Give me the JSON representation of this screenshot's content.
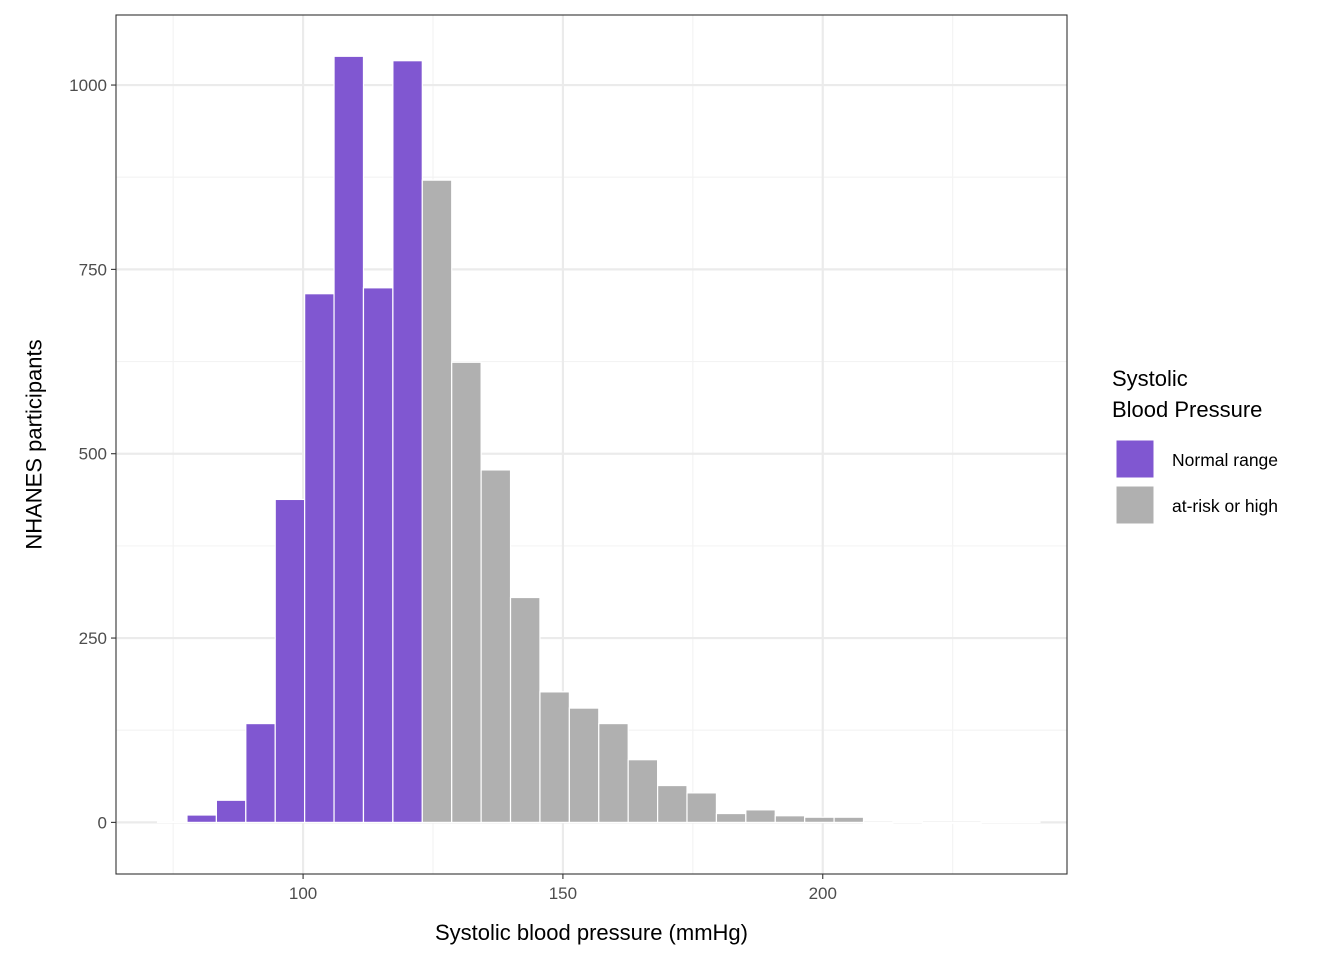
{
  "chart_data": {
    "type": "bar",
    "subtype": "histogram",
    "title": "",
    "xlabel": "Systolic blood pressure (mmHg)",
    "ylabel": "NHANES participants",
    "xlim": [
      64,
      247
    ],
    "ylim": [
      -70,
      1095
    ],
    "x_ticks": [
      100,
      150,
      200
    ],
    "x_tick_labels": [
      "100",
      "150",
      "200"
    ],
    "y_ticks": [
      0,
      250,
      500,
      750,
      1000
    ],
    "y_tick_labels": [
      "0",
      "250",
      "500",
      "750",
      "1000"
    ],
    "grid": true,
    "bin_width": 5.66,
    "bins": [
      {
        "x_start": 72.0,
        "x_end": 77.66,
        "count": 1,
        "group": "Normal range"
      },
      {
        "x_start": 77.66,
        "x_end": 83.32,
        "count": 10,
        "group": "Normal range"
      },
      {
        "x_start": 83.32,
        "x_end": 88.98,
        "count": 30,
        "group": "Normal range"
      },
      {
        "x_start": 88.98,
        "x_end": 94.64,
        "count": 134,
        "group": "Normal range"
      },
      {
        "x_start": 94.64,
        "x_end": 100.3,
        "count": 438,
        "group": "Normal range"
      },
      {
        "x_start": 100.3,
        "x_end": 105.96,
        "count": 717,
        "group": "Normal range"
      },
      {
        "x_start": 105.96,
        "x_end": 111.62,
        "count": 1039,
        "group": "Normal range"
      },
      {
        "x_start": 111.62,
        "x_end": 117.28,
        "count": 725,
        "group": "Normal range"
      },
      {
        "x_start": 117.28,
        "x_end": 122.94,
        "count": 1033,
        "group": "Normal range"
      },
      {
        "x_start": 122.94,
        "x_end": 128.6,
        "count": 871,
        "group": "at-risk or high"
      },
      {
        "x_start": 128.6,
        "x_end": 134.26,
        "count": 624,
        "group": "at-risk or high"
      },
      {
        "x_start": 134.26,
        "x_end": 139.92,
        "count": 478,
        "group": "at-risk or high"
      },
      {
        "x_start": 139.92,
        "x_end": 145.58,
        "count": 305,
        "group": "at-risk or high"
      },
      {
        "x_start": 145.58,
        "x_end": 151.24,
        "count": 177,
        "group": "at-risk or high"
      },
      {
        "x_start": 151.24,
        "x_end": 156.9,
        "count": 155,
        "group": "at-risk or high"
      },
      {
        "x_start": 156.9,
        "x_end": 162.56,
        "count": 134,
        "group": "at-risk or high"
      },
      {
        "x_start": 162.56,
        "x_end": 168.22,
        "count": 85,
        "group": "at-risk or high"
      },
      {
        "x_start": 168.22,
        "x_end": 173.88,
        "count": 50,
        "group": "at-risk or high"
      },
      {
        "x_start": 173.88,
        "x_end": 179.54,
        "count": 40,
        "group": "at-risk or high"
      },
      {
        "x_start": 179.54,
        "x_end": 185.2,
        "count": 12,
        "group": "at-risk or high"
      },
      {
        "x_start": 185.2,
        "x_end": 190.86,
        "count": 17,
        "group": "at-risk or high"
      },
      {
        "x_start": 190.86,
        "x_end": 196.52,
        "count": 9,
        "group": "at-risk or high"
      },
      {
        "x_start": 196.52,
        "x_end": 202.18,
        "count": 7,
        "group": "at-risk or high"
      },
      {
        "x_start": 202.18,
        "x_end": 207.84,
        "count": 7,
        "group": "at-risk or high"
      },
      {
        "x_start": 207.84,
        "x_end": 213.5,
        "count": 0,
        "group": "at-risk or high"
      },
      {
        "x_start": 213.5,
        "x_end": 219.16,
        "count": 1,
        "group": "at-risk or high"
      },
      {
        "x_start": 219.16,
        "x_end": 224.82,
        "count": 0,
        "group": "at-risk or high"
      },
      {
        "x_start": 224.82,
        "x_end": 230.48,
        "count": 0,
        "group": "at-risk or high"
      },
      {
        "x_start": 230.48,
        "x_end": 236.14,
        "count": 1,
        "group": "at-risk or high"
      },
      {
        "x_start": 236.14,
        "x_end": 241.8,
        "count": 1,
        "group": "at-risk or high"
      }
    ],
    "legend": {
      "title_lines": [
        "Systolic",
        "Blood Pressure"
      ],
      "position": "right",
      "entries": [
        {
          "label": "Normal range",
          "color": "#8057d1"
        },
        {
          "label": "at-risk or high",
          "color": "#b0b0b0"
        }
      ]
    },
    "colors": {
      "Normal range": "#8057d1",
      "at-risk or high": "#b0b0b0",
      "panel_border": "#333333",
      "grid_major": "#ebebeb",
      "grid_minor": "#f3f3f3",
      "tick_text": "#4d4d4d"
    }
  }
}
